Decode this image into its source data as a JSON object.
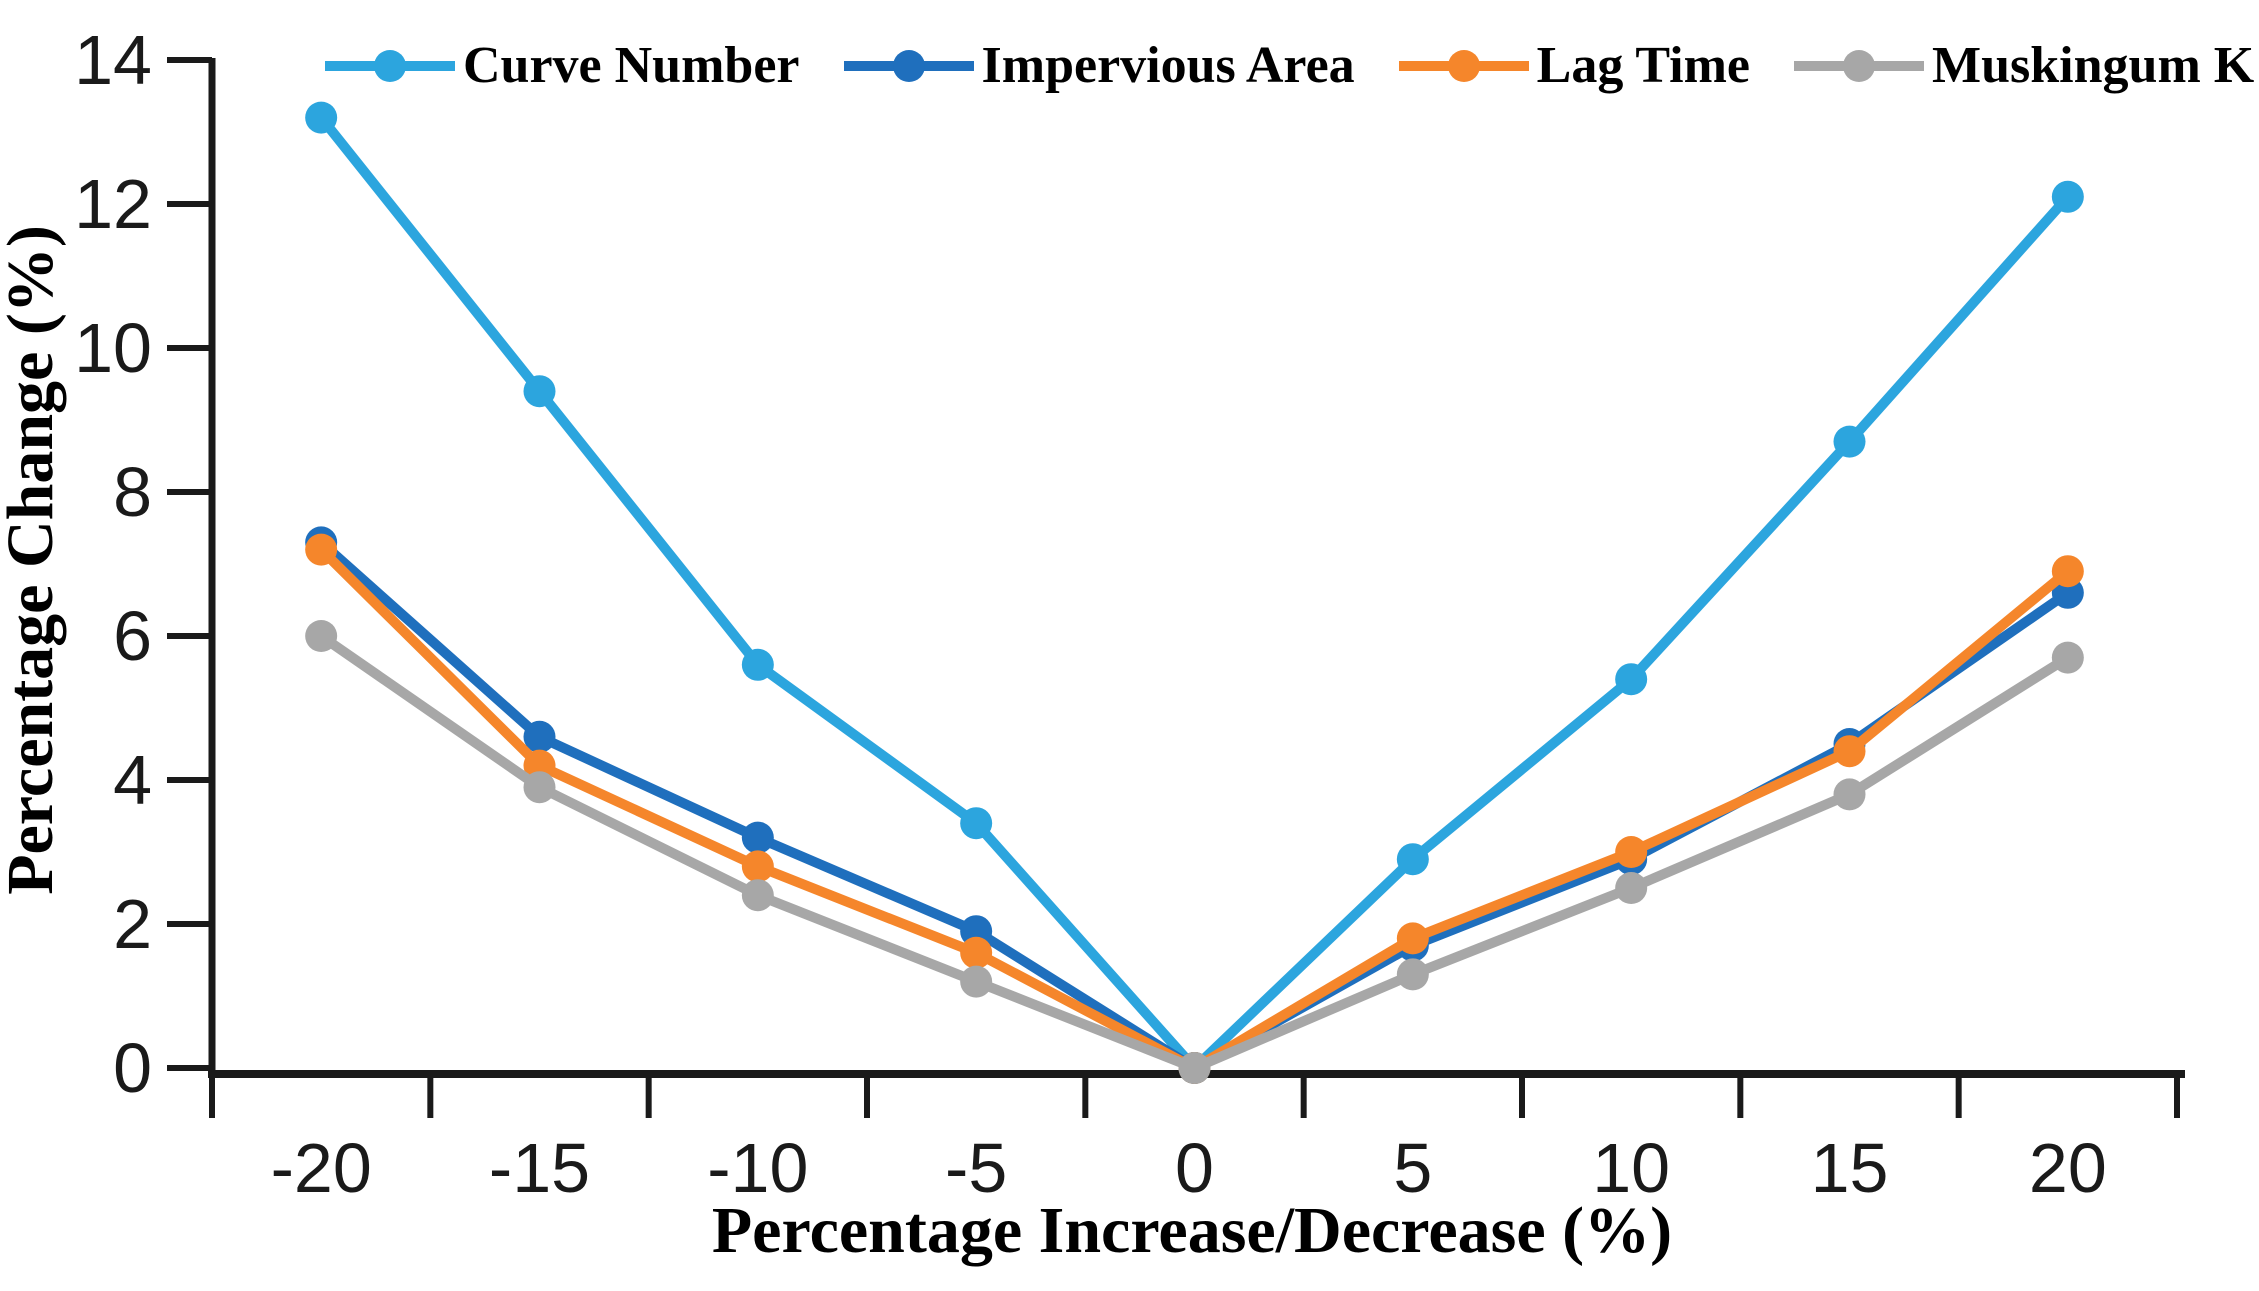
{
  "figure": {
    "background": "#ffffff",
    "axis_color": "#1a1a1a",
    "text_color": "#000000"
  },
  "chart_data": {
    "type": "line",
    "title": "",
    "xlabel": "Percentage Increase/Decrease (%)",
    "ylabel": "Percentage Change (%)",
    "x_values": [
      -20,
      -15,
      -10,
      -5,
      0,
      5,
      10,
      15,
      20
    ],
    "x_tick_labels": [
      "-20",
      "-15",
      "-10",
      "-5",
      "0",
      "5",
      "10",
      "15",
      "20"
    ],
    "y_tick_values": [
      0,
      2,
      4,
      6,
      8,
      10,
      12,
      14
    ],
    "ylim": [
      0,
      14
    ],
    "grid": false,
    "legend_position": "top",
    "marker": "circle",
    "series": [
      {
        "name": "Curve Number",
        "color": "#2CA5DE",
        "values": [
          13.2,
          9.4,
          5.6,
          3.4,
          0,
          2.9,
          5.4,
          8.7,
          12.1
        ]
      },
      {
        "name": "Impervious Area",
        "color": "#1F6FBD",
        "values": [
          7.3,
          4.6,
          3.2,
          1.9,
          0,
          1.7,
          2.9,
          4.5,
          6.6
        ]
      },
      {
        "name": "Lag Time",
        "color": "#F5862B",
        "values": [
          7.2,
          4.2,
          2.8,
          1.6,
          0,
          1.8,
          3.0,
          4.4,
          6.9
        ]
      },
      {
        "name": "Muskingum K",
        "color": "#A7A7A7",
        "values": [
          6.0,
          3.9,
          2.4,
          1.2,
          0,
          1.3,
          2.5,
          3.8,
          5.7
        ]
      }
    ]
  }
}
